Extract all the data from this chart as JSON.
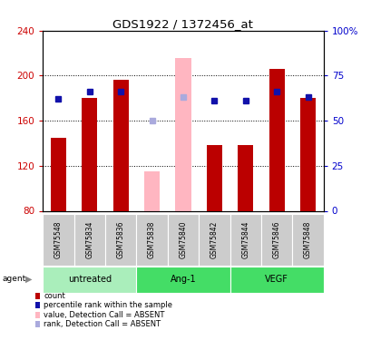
{
  "title": "GDS1922 / 1372456_at",
  "samples": [
    "GSM75548",
    "GSM75834",
    "GSM75836",
    "GSM75838",
    "GSM75840",
    "GSM75842",
    "GSM75844",
    "GSM75846",
    "GSM75848"
  ],
  "bar_values": [
    145,
    180,
    196,
    null,
    null,
    138,
    138,
    206,
    180
  ],
  "bar_absent": [
    null,
    null,
    null,
    115,
    216,
    null,
    null,
    null,
    null
  ],
  "bar_color_present": "#BB0000",
  "bar_color_absent": "#FFB6C1",
  "rank_values": [
    62,
    66,
    66,
    null,
    null,
    61,
    61,
    66,
    63
  ],
  "rank_absent": [
    null,
    null,
    null,
    50,
    63,
    null,
    null,
    null,
    null
  ],
  "rank_color_present": "#1111AA",
  "rank_color_absent": "#AAAADD",
  "ylim": [
    80,
    240
  ],
  "yticks": [
    80,
    120,
    160,
    200,
    240
  ],
  "y2lim": [
    0,
    100
  ],
  "y2ticks": [
    0,
    25,
    50,
    75,
    100
  ],
  "y2labels": [
    "0",
    "25",
    "50",
    "75",
    "100%"
  ],
  "left_tick_color": "#CC0000",
  "right_tick_color": "#0000CC",
  "group_defs": [
    {
      "label": "untreated",
      "start": 0,
      "end": 2,
      "color": "#AAEEBB"
    },
    {
      "label": "Ang-1",
      "start": 3,
      "end": 5,
      "color": "#44DD66"
    },
    {
      "label": "VEGF",
      "start": 6,
      "end": 8,
      "color": "#44DD66"
    }
  ],
  "sample_row_color": "#CCCCCC",
  "legend_items": [
    {
      "label": "count",
      "color": "#BB0000"
    },
    {
      "label": "percentile rank within the sample",
      "color": "#1111AA"
    },
    {
      "label": "value, Detection Call = ABSENT",
      "color": "#FFB6C1"
    },
    {
      "label": "rank, Detection Call = ABSENT",
      "color": "#AAAADD"
    }
  ]
}
